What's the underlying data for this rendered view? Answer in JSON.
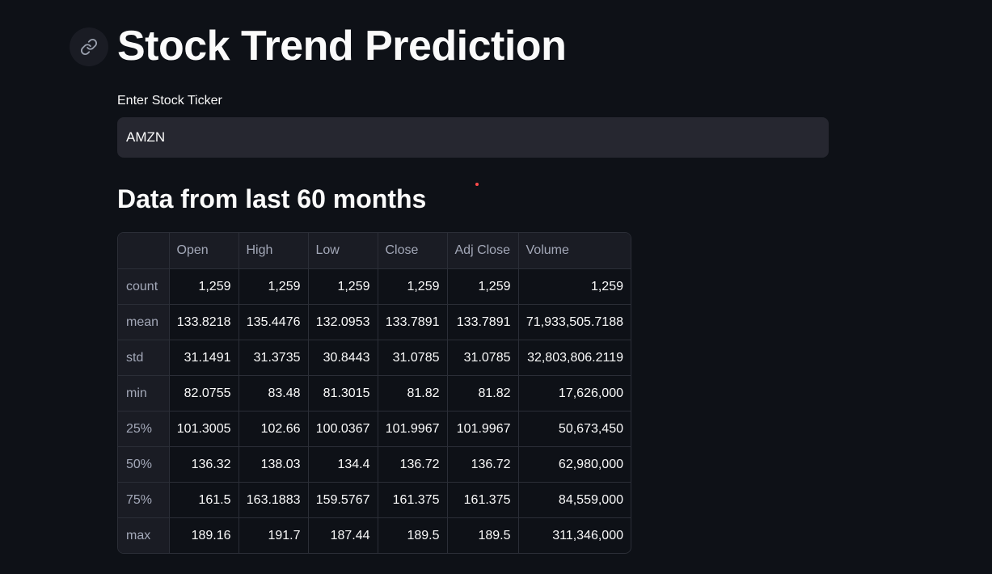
{
  "page": {
    "title": "Stock Trend Prediction",
    "input_label": "Enter Stock Ticker",
    "ticker_value": "AMZN",
    "subheader": "Data from last 60 months"
  },
  "table": {
    "columns": [
      "",
      "Open",
      "High",
      "Low",
      "Close",
      "Adj Close",
      "Volume"
    ],
    "rows": [
      {
        "label": "count",
        "values": [
          "1,259",
          "1,259",
          "1,259",
          "1,259",
          "1,259",
          "1,259"
        ]
      },
      {
        "label": "mean",
        "values": [
          "133.8218",
          "135.4476",
          "132.0953",
          "133.7891",
          "133.7891",
          "71,933,505.7188"
        ]
      },
      {
        "label": "std",
        "values": [
          "31.1491",
          "31.3735",
          "30.8443",
          "31.0785",
          "31.0785",
          "32,803,806.2119"
        ]
      },
      {
        "label": "min",
        "values": [
          "82.0755",
          "83.48",
          "81.3015",
          "81.82",
          "81.82",
          "17,626,000"
        ]
      },
      {
        "label": "25%",
        "values": [
          "101.3005",
          "102.66",
          "100.0367",
          "101.9967",
          "101.9967",
          "50,673,450"
        ]
      },
      {
        "label": "50%",
        "values": [
          "136.32",
          "138.03",
          "134.4",
          "136.72",
          "136.72",
          "62,980,000"
        ]
      },
      {
        "label": "75%",
        "values": [
          "161.5",
          "163.1883",
          "159.5767",
          "161.375",
          "161.375",
          "84,559,000"
        ]
      },
      {
        "label": "max",
        "values": [
          "189.16",
          "191.7",
          "187.44",
          "189.5",
          "189.5",
          "311,346,000"
        ]
      }
    ]
  },
  "colors": {
    "background": "#0e1117",
    "input_background": "#262730",
    "table_header_background": "#1a1c24",
    "accent_dot": "#ff4b4b"
  },
  "icons": {
    "anchor": "link-icon"
  }
}
